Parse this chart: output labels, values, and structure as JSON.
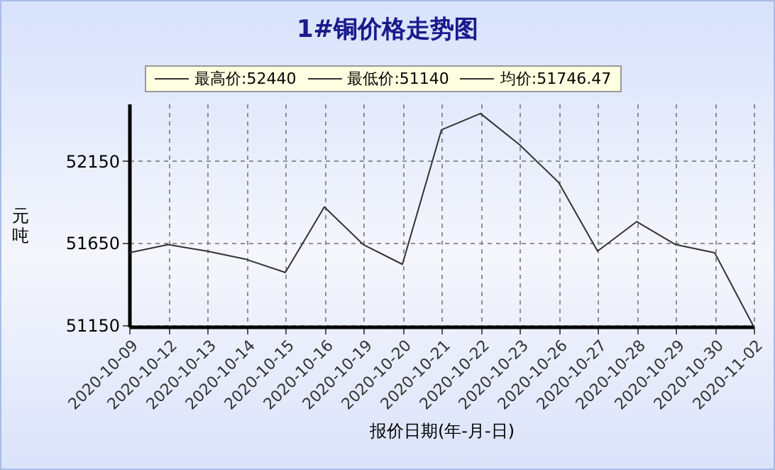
{
  "chart_data": {
    "type": "line",
    "title": "1#铜价格走势图",
    "xlabel": "报价日期(年-月-日)",
    "ylabel": "元吨",
    "annotations": [
      "最高价:52440",
      "最低价:51140",
      "均价:51746.47"
    ],
    "categories": [
      "2020-10-09",
      "2020-10-12",
      "2020-10-13",
      "2020-10-14",
      "2020-10-15",
      "2020-10-16",
      "2020-10-19",
      "2020-10-20",
      "2020-10-21",
      "2020-10-22",
      "2020-10-23",
      "2020-10-26",
      "2020-10-27",
      "2020-10-28",
      "2020-10-29",
      "2020-10-30",
      "2020-11-02"
    ],
    "series": [
      {
        "color": "#333333",
        "values": [
          51590,
          51640,
          51600,
          51550,
          51470,
          51870,
          51640,
          51520,
          52340,
          52440,
          52250,
          52020,
          51600,
          51780,
          51640,
          51590,
          51140
        ]
      }
    ],
    "ylim": [
      51140,
      52500
    ],
    "yticks": [
      51150,
      51650,
      52150
    ],
    "grid": true,
    "marker": "none",
    "line_style": "solid"
  }
}
